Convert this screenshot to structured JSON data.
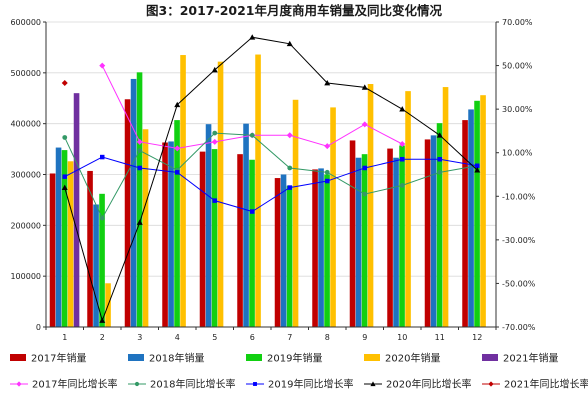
{
  "chart_data": {
    "type": "bar",
    "title": "图3：2017-2021年月度商用车销量及同比变化情况",
    "categories": [
      "1",
      "2",
      "3",
      "4",
      "5",
      "6",
      "7",
      "8",
      "9",
      "10",
      "11",
      "12"
    ],
    "y_left": {
      "min": 0,
      "max": 600000,
      "ticks": [
        "0",
        "100000",
        "200000",
        "300000",
        "400000",
        "500000",
        "600000"
      ]
    },
    "y_right": {
      "min": -70,
      "max": 70,
      "ticks": [
        "-70.00%",
        "-50.00%",
        "-30.00%",
        "-10.00%",
        "10.00%",
        "30.00%",
        "50.00%",
        "70.00%"
      ]
    },
    "bar_series": [
      {
        "name": "2017年销量",
        "color": "#c00000",
        "values": [
          302000,
          307000,
          448000,
          363000,
          345000,
          340000,
          293000,
          310000,
          367000,
          351000,
          369000,
          407000
        ]
      },
      {
        "name": "2018年销量",
        "color": "#1f73c0",
        "values": [
          353000,
          241000,
          488000,
          365000,
          399000,
          400000,
          300000,
          312000,
          333000,
          333000,
          377000,
          428000
        ]
      },
      {
        "name": "2019年销量",
        "color": "#11d011",
        "values": [
          348000,
          262000,
          501000,
          407000,
          350000,
          329000,
          278000,
          300000,
          340000,
          357000,
          401000,
          445000
        ]
      },
      {
        "name": "2020年销量",
        "color": "#ffc000",
        "values": [
          326000,
          86000,
          389000,
          535000,
          522000,
          536000,
          447000,
          432000,
          478000,
          464000,
          472000,
          456000
        ]
      },
      {
        "name": "2021年销量",
        "color": "#7030a0",
        "values": [
          460000,
          null,
          null,
          null,
          null,
          null,
          null,
          null,
          null,
          null,
          null,
          null
        ]
      }
    ],
    "line_series": [
      {
        "name": "2017年同比增长率",
        "color": "#ff33ff",
        "marker": "diamond",
        "values": [
          null,
          50,
          15,
          12,
          15,
          18,
          18,
          13,
          23,
          14,
          null,
          null
        ]
      },
      {
        "name": "2018年同比增长率",
        "color": "#339966",
        "marker": "circle",
        "values": [
          17,
          -20,
          11,
          2,
          19,
          18,
          3,
          1,
          -9,
          -5,
          1,
          4
        ]
      },
      {
        "name": "2019年同比增长率",
        "color": "#0000ff",
        "marker": "square",
        "values": [
          -1,
          8,
          3,
          1,
          -12,
          -17,
          -6,
          -3,
          3,
          7,
          7,
          4
        ]
      },
      {
        "name": "2020年同比增长率",
        "color": "#000000",
        "marker": "triangle",
        "values": [
          -6,
          -67,
          -22,
          32,
          48,
          63,
          60,
          42,
          40,
          30,
          18,
          2
        ]
      },
      {
        "name": "2021年同比增长率",
        "color": "#c00000",
        "marker": "diamond",
        "values": [
          42,
          null,
          null,
          null,
          null,
          null,
          null,
          null,
          null,
          null,
          null,
          null
        ]
      }
    ],
    "grid": "horizontal",
    "legend_position": "bottom"
  }
}
